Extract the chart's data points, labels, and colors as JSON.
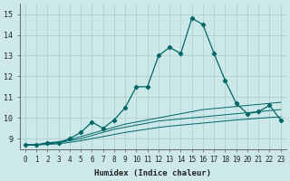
{
  "xlabel": "Humidex (Indice chaleur)",
  "bg_color": "#cce8e8",
  "grid_color": "#aacccc",
  "line_color": "#006666",
  "x": [
    0,
    1,
    2,
    3,
    4,
    5,
    6,
    7,
    8,
    9,
    10,
    11,
    12,
    13,
    14,
    15,
    16,
    17,
    18,
    19,
    20,
    21,
    22,
    23
  ],
  "y_main": [
    8.7,
    8.7,
    8.8,
    8.8,
    9.0,
    9.3,
    9.8,
    9.5,
    9.9,
    10.5,
    11.5,
    11.5,
    13.0,
    13.4,
    13.1,
    14.8,
    14.5,
    13.1,
    11.8,
    10.7,
    10.2,
    10.3,
    10.6,
    9.9
  ],
  "y_line2": [
    8.7,
    8.7,
    8.8,
    8.85,
    8.95,
    9.1,
    9.25,
    9.4,
    9.55,
    9.7,
    9.8,
    9.9,
    10.0,
    10.1,
    10.2,
    10.3,
    10.4,
    10.45,
    10.5,
    10.55,
    10.6,
    10.65,
    10.7,
    10.75
  ],
  "y_line3": [
    8.7,
    8.7,
    8.75,
    8.8,
    8.9,
    9.0,
    9.15,
    9.3,
    9.45,
    9.55,
    9.65,
    9.75,
    9.85,
    9.9,
    9.95,
    10.0,
    10.05,
    10.1,
    10.15,
    10.2,
    10.25,
    10.3,
    10.35,
    10.4
  ],
  "y_line4": [
    8.7,
    8.7,
    8.72,
    8.75,
    8.82,
    8.9,
    9.0,
    9.1,
    9.2,
    9.3,
    9.38,
    9.46,
    9.54,
    9.6,
    9.65,
    9.7,
    9.75,
    9.8,
    9.85,
    9.9,
    9.94,
    9.98,
    10.02,
    10.05
  ],
  "ylim": [
    8.5,
    15.5
  ],
  "xlim": [
    -0.5,
    23.5
  ],
  "yticks": [
    9,
    10,
    11,
    12,
    13,
    14,
    15
  ],
  "xticks": [
    0,
    1,
    2,
    3,
    4,
    5,
    6,
    7,
    8,
    9,
    10,
    11,
    12,
    13,
    14,
    15,
    16,
    17,
    18,
    19,
    20,
    21,
    22,
    23
  ]
}
